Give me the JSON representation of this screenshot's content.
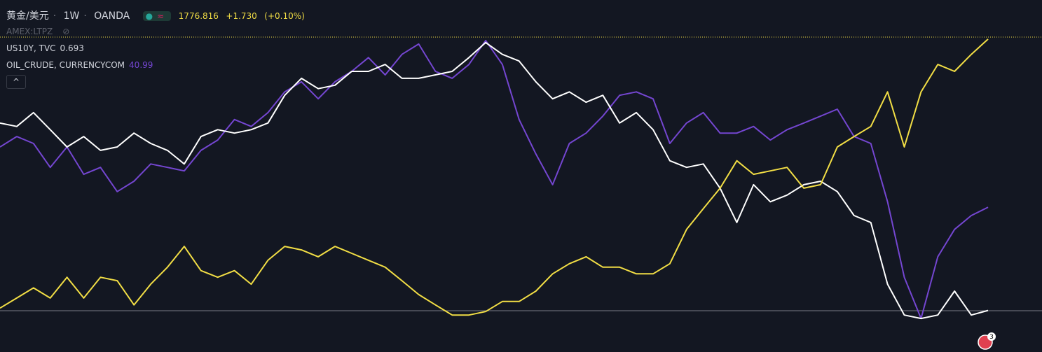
{
  "header": {
    "symbol": "黄金/美元",
    "interval": "1W",
    "exchange": "OANDA",
    "last": "1776.816",
    "change": "+1.730",
    "change_pct": "(+0.10%)",
    "hidden_symbol": "AMEX:LTPZ"
  },
  "chart_data": {
    "type": "line",
    "ylim": [
      0,
      100
    ],
    "series": [
      {
        "name": "黄金/美元",
        "color": "#f2de45",
        "values": [
          6,
          9.5,
          13,
          9.5,
          16.7,
          9.5,
          16.7,
          15.5,
          7.1,
          14.3,
          20.2,
          27.4,
          19,
          16.7,
          19,
          14.3,
          22.6,
          27.4,
          26.2,
          23.8,
          27.4,
          25,
          22.6,
          20.2,
          15.5,
          10.7,
          7.1,
          3.6,
          3.6,
          4.8,
          8.3,
          8.3,
          11.9,
          17.9,
          21.4,
          23.8,
          20.2,
          20.2,
          17.9,
          17.9,
          21.4,
          33.3,
          40.5,
          47.6,
          57.1,
          52.4,
          53.6,
          54.8,
          47.6,
          48.8,
          61.9,
          65.5,
          69,
          81,
          61.9,
          81,
          90.5,
          88.1,
          94,
          99.3
        ]
      },
      {
        "name": "US10Y, TVC",
        "last": "0.693",
        "color": "#ffffff",
        "values": [
          70.2,
          69,
          73.8,
          67.9,
          61.9,
          65.5,
          60.7,
          61.9,
          66.7,
          63.1,
          60.7,
          56,
          65.5,
          67.9,
          66.7,
          67.9,
          70.2,
          79.8,
          85.7,
          82.1,
          83.3,
          88.1,
          88.1,
          90.5,
          85.7,
          85.7,
          86.9,
          88.1,
          92.9,
          98.1,
          94,
          91.7,
          84.5,
          78.6,
          81,
          77.4,
          79.8,
          70.2,
          73.8,
          67.9,
          57.1,
          54.8,
          56,
          47.6,
          35.7,
          48.8,
          42.9,
          45.2,
          48.8,
          50,
          46.4,
          38.1,
          35.7,
          14.3,
          3.6,
          2.4,
          3.6,
          11.9,
          3.6,
          5.2
        ]
      },
      {
        "name": "OIL_CRUDE, CURRENCYCOM",
        "last": "40.99",
        "color": "#7446d1",
        "values": [
          61.9,
          65.5,
          63.1,
          54.8,
          61.9,
          52.4,
          54.8,
          46.4,
          50,
          56,
          54.8,
          53.6,
          60.7,
          64.3,
          71.4,
          69,
          73.8,
          81,
          84.5,
          78.6,
          84.5,
          88.1,
          92.9,
          86.9,
          94,
          97.6,
          88.1,
          85.7,
          90.5,
          98.8,
          90.5,
          71.4,
          59.5,
          48.8,
          63.1,
          66.7,
          72.6,
          79.8,
          81,
          78.6,
          63.1,
          70.2,
          73.8,
          66.7,
          66.7,
          69,
          64.3,
          67.9,
          70.2,
          72.6,
          75,
          65.5,
          63.1,
          42.9,
          16.7,
          2.4,
          23.8,
          33.3,
          38.1,
          41
        ]
      }
    ]
  }
}
